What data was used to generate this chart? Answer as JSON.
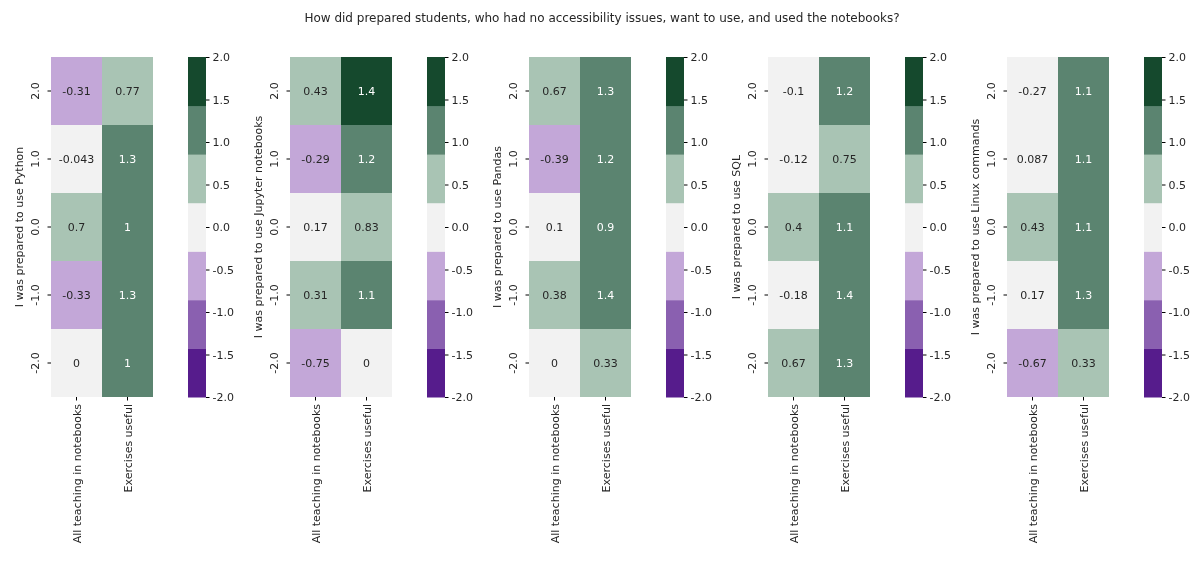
{
  "chart_data": [
    {
      "type": "heatmap",
      "ylabel": "I was prepared to use Python",
      "categories": [
        "All teaching in notebooks",
        "Exercises useful"
      ],
      "y_categories": [
        "2.0",
        "1.0",
        "0.0",
        "-1.0",
        "-2.0"
      ],
      "cells": [
        [
          -0.31,
          0.77
        ],
        [
          -0.043,
          1.3
        ],
        [
          0.7,
          1
        ],
        [
          -0.33,
          1.3
        ],
        [
          0,
          1
        ]
      ],
      "cell_labels": [
        [
          "-0.31",
          "0.77"
        ],
        [
          "-0.043",
          "1.3"
        ],
        [
          "0.7",
          "1"
        ],
        [
          "-0.33",
          "1.3"
        ],
        [
          "0",
          "1"
        ]
      ],
      "clim": [
        -2,
        2
      ],
      "cticks": [
        {
          "value": 2,
          "label": "2.0"
        },
        1.5,
        {
          "value": 1,
          "label": "1.0"
        },
        0.5,
        {
          "value": 0,
          "label": "0.0"
        },
        -0.5,
        {
          "value": -1,
          "label": "-1.0"
        },
        -1.5,
        {
          "value": -2,
          "label": "-2.0"
        }
      ],
      "colors": [
        "#561c8c",
        "#8a60b0",
        "#c3a7d8",
        "#f2f2f2",
        "#a9c4b4",
        "#5b8470",
        "#15492d"
      ]
    },
    {
      "type": "heatmap",
      "ylabel": "I was prepared to use Jupyter notebooks",
      "categories": [
        "All teaching in notebooks",
        "Exercises useful"
      ],
      "y_categories": [
        "2.0",
        "1.0",
        "0.0",
        "-1.0",
        "-2.0"
      ],
      "cells": [
        [
          0.43,
          1.44
        ],
        [
          -0.29,
          1.2
        ],
        [
          0.17,
          0.83
        ],
        [
          0.31,
          1.1
        ],
        [
          -0.75,
          0
        ]
      ],
      "cell_labels": [
        [
          "0.43",
          "1.4"
        ],
        [
          "-0.29",
          "1.2"
        ],
        [
          "0.17",
          "0.83"
        ],
        [
          "0.31",
          "1.1"
        ],
        [
          "-0.75",
          "0"
        ]
      ],
      "clim": [
        -2,
        2
      ],
      "cticks": [
        {
          "value": 2,
          "label": "2.0"
        },
        1.5,
        {
          "value": 1,
          "label": "1.0"
        },
        0.5,
        {
          "value": 0,
          "label": "0.0"
        },
        -0.5,
        {
          "value": -1,
          "label": "-1.0"
        },
        -1.5,
        {
          "value": -2,
          "label": "-2.0"
        }
      ],
      "colors": [
        "#561c8c",
        "#8a60b0",
        "#c3a7d8",
        "#f2f2f2",
        "#a9c4b4",
        "#5b8470",
        "#15492d"
      ]
    },
    {
      "type": "heatmap",
      "title": "How did prepared students, who had no accessibility issues, want to use, and used the notebooks?",
      "ylabel": "I was prepared to use Pandas",
      "categories": [
        "All teaching in notebooks",
        "Exercises useful"
      ],
      "y_categories": [
        "2.0",
        "1.0",
        "0.0",
        "-1.0",
        "-2.0"
      ],
      "cells": [
        [
          0.67,
          1.3
        ],
        [
          -0.39,
          1.2
        ],
        [
          0.1,
          0.9
        ],
        [
          0.38,
          1.4
        ],
        [
          0,
          0.33
        ]
      ],
      "cell_labels": [
        [
          "0.67",
          "1.3"
        ],
        [
          "-0.39",
          "1.2"
        ],
        [
          "0.1",
          "0.9"
        ],
        [
          "0.38",
          "1.4"
        ],
        [
          "0",
          "0.33"
        ]
      ],
      "clim": [
        -2,
        2
      ],
      "cticks": [
        {
          "value": 2,
          "label": "2.0"
        },
        1.5,
        {
          "value": 1,
          "label": "1.0"
        },
        0.5,
        {
          "value": 0,
          "label": "0.0"
        },
        -0.5,
        {
          "value": -1,
          "label": "-1.0"
        },
        -1.5,
        {
          "value": -2,
          "label": "-2.0"
        }
      ],
      "colors": [
        "#561c8c",
        "#8a60b0",
        "#c3a7d8",
        "#f2f2f2",
        "#a9c4b4",
        "#5b8470",
        "#15492d"
      ]
    },
    {
      "type": "heatmap",
      "ylabel": "I was prepared to use SQL",
      "categories": [
        "All teaching in notebooks",
        "Exercises useful"
      ],
      "y_categories": [
        "2.0",
        "1.0",
        "0.0",
        "-1.0",
        "-2.0"
      ],
      "cells": [
        [
          -0.1,
          1.2
        ],
        [
          -0.12,
          0.75
        ],
        [
          0.4,
          1.1
        ],
        [
          -0.18,
          1.4
        ],
        [
          0.67,
          1.3
        ]
      ],
      "cell_labels": [
        [
          "-0.1",
          "1.2"
        ],
        [
          "-0.12",
          "0.75"
        ],
        [
          "0.4",
          "1.1"
        ],
        [
          "-0.18",
          "1.4"
        ],
        [
          "0.67",
          "1.3"
        ]
      ],
      "clim": [
        -2,
        2
      ],
      "cticks": [
        {
          "value": 2,
          "label": "2.0"
        },
        1.5,
        {
          "value": 1,
          "label": "1.0"
        },
        0.5,
        {
          "value": 0,
          "label": "0.0"
        },
        -0.5,
        {
          "value": -1,
          "label": "-1.0"
        },
        -1.5,
        {
          "value": -2,
          "label": "-2.0"
        }
      ],
      "colors": [
        "#561c8c",
        "#8a60b0",
        "#c3a7d8",
        "#f2f2f2",
        "#a9c4b4",
        "#5b8470",
        "#15492d"
      ]
    },
    {
      "type": "heatmap",
      "ylabel": "I was prepared to use Linux commands",
      "categories": [
        "All teaching in notebooks",
        "Exercises useful"
      ],
      "y_categories": [
        "2.0",
        "1.0",
        "0.0",
        "-1.0",
        "-2.0"
      ],
      "cells": [
        [
          -0.27,
          1.1
        ],
        [
          0.087,
          1.1
        ],
        [
          0.43,
          1.1
        ],
        [
          0.17,
          1.3
        ],
        [
          -0.67,
          0.33
        ]
      ],
      "cell_labels": [
        [
          "-0.27",
          "1.1"
        ],
        [
          "0.087",
          "1.1"
        ],
        [
          "0.43",
          "1.1"
        ],
        [
          "0.17",
          "1.3"
        ],
        [
          "-0.67",
          "0.33"
        ]
      ],
      "clim": [
        -2,
        2
      ],
      "cticks": [
        {
          "value": 2,
          "label": "2.0"
        },
        1.5,
        {
          "value": 1,
          "label": "1.0"
        },
        0.5,
        {
          "value": 0,
          "label": "0.0"
        },
        -0.5,
        {
          "value": -1,
          "label": "-1.0"
        },
        -1.5,
        {
          "value": -2,
          "label": "-2.0"
        }
      ],
      "colors": [
        "#561c8c",
        "#8a60b0",
        "#c3a7d8",
        "#f2f2f2",
        "#a9c4b4",
        "#5b8470",
        "#15492d"
      ]
    }
  ]
}
